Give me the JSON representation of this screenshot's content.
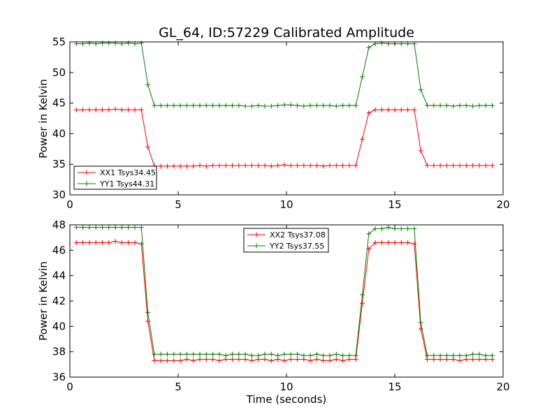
{
  "figure": {
    "title": "GL_64, ID:57229 Calibrated Amplitude"
  },
  "colors": {
    "red": "#ff0000",
    "green": "#008000",
    "axis": "#000000",
    "background": "#ffffff"
  },
  "chart_data": [
    {
      "type": "line",
      "title": "GL_64, ID:57229 Calibrated Amplitude",
      "xlabel": "",
      "ylabel": "Power in Kelvin",
      "xlim": [
        0,
        20
      ],
      "ylim": [
        30,
        55
      ],
      "xticks": [
        0,
        5,
        10,
        15,
        20
      ],
      "yticks": [
        30,
        35,
        40,
        45,
        50,
        55
      ],
      "xtick_labels": [
        "0",
        "5",
        "10",
        "15",
        "20"
      ],
      "ytick_labels": [
        "30",
        "35",
        "40",
        "45",
        "50",
        "55"
      ],
      "grid": false,
      "legend": "lower-left",
      "marker": "+",
      "x": [
        0.3,
        0.6,
        0.9,
        1.2,
        1.5,
        1.8,
        2.1,
        2.4,
        2.7,
        3.0,
        3.3,
        3.6,
        3.9,
        4.2,
        4.5,
        4.8,
        5.1,
        5.4,
        5.7,
        6.0,
        6.3,
        6.6,
        6.9,
        7.2,
        7.5,
        7.8,
        8.1,
        8.4,
        8.7,
        9.0,
        9.3,
        9.6,
        9.9,
        10.2,
        10.5,
        10.8,
        11.1,
        11.4,
        11.7,
        12.0,
        12.3,
        12.6,
        12.9,
        13.2,
        13.5,
        13.8,
        14.1,
        14.4,
        14.7,
        15.0,
        15.3,
        15.6,
        15.9,
        16.2,
        16.5,
        16.8,
        17.1,
        17.4,
        17.7,
        18.0,
        18.3,
        18.6,
        18.9,
        19.2,
        19.5
      ],
      "series": [
        {
          "name": "XX1 Tsys34.45",
          "color": "#ff0000",
          "values": [
            43.9,
            43.9,
            43.9,
            43.9,
            43.9,
            43.9,
            44.0,
            43.9,
            43.9,
            43.9,
            43.9,
            37.8,
            34.7,
            34.7,
            34.7,
            34.7,
            34.7,
            34.7,
            34.7,
            34.8,
            34.7,
            34.8,
            34.8,
            34.8,
            34.8,
            34.8,
            34.8,
            34.8,
            34.8,
            34.8,
            34.7,
            34.8,
            34.9,
            34.8,
            34.8,
            34.8,
            34.8,
            34.8,
            34.7,
            34.8,
            34.8,
            34.8,
            34.8,
            34.8,
            39.1,
            43.4,
            43.9,
            43.9,
            43.9,
            43.9,
            43.9,
            43.9,
            43.9,
            37.2,
            34.8,
            34.8,
            34.8,
            34.8,
            34.8,
            34.8,
            34.8,
            34.8,
            34.8,
            34.8,
            34.8
          ]
        },
        {
          "name": "YY1 Tsys44.31",
          "color": "#008000",
          "values": [
            54.7,
            54.7,
            54.8,
            54.7,
            54.8,
            54.8,
            54.8,
            54.7,
            54.8,
            54.7,
            54.8,
            48.0,
            44.6,
            44.6,
            44.6,
            44.6,
            44.6,
            44.6,
            44.6,
            44.6,
            44.6,
            44.6,
            44.6,
            44.6,
            44.6,
            44.6,
            44.5,
            44.5,
            44.6,
            44.5,
            44.5,
            44.6,
            44.7,
            44.7,
            44.6,
            44.5,
            44.6,
            44.6,
            44.6,
            44.6,
            44.5,
            44.6,
            44.6,
            44.6,
            49.3,
            54.1,
            54.7,
            54.8,
            54.7,
            54.7,
            54.7,
            54.7,
            54.7,
            47.2,
            44.6,
            44.6,
            44.6,
            44.6,
            44.5,
            44.6,
            44.6,
            44.5,
            44.6,
            44.6,
            44.6
          ]
        }
      ]
    },
    {
      "type": "line",
      "title": "",
      "xlabel": "Time (seconds)",
      "ylabel": "Power in Kelvin",
      "xlim": [
        0,
        20
      ],
      "ylim": [
        36,
        48
      ],
      "xticks": [
        0,
        5,
        10,
        15,
        20
      ],
      "yticks": [
        36,
        38,
        40,
        42,
        44,
        46,
        48
      ],
      "xtick_labels": [
        "0",
        "5",
        "10",
        "15",
        "20"
      ],
      "ytick_labels": [
        "36",
        "38",
        "40",
        "42",
        "44",
        "46",
        "48"
      ],
      "grid": false,
      "legend": "top-center",
      "marker": "+",
      "x": [
        0.3,
        0.6,
        0.9,
        1.2,
        1.5,
        1.8,
        2.1,
        2.4,
        2.7,
        3.0,
        3.3,
        3.6,
        3.9,
        4.2,
        4.5,
        4.8,
        5.1,
        5.4,
        5.7,
        6.0,
        6.3,
        6.6,
        6.9,
        7.2,
        7.5,
        7.8,
        8.1,
        8.4,
        8.7,
        9.0,
        9.3,
        9.6,
        9.9,
        10.2,
        10.5,
        10.8,
        11.1,
        11.4,
        11.7,
        12.0,
        12.3,
        12.6,
        12.9,
        13.2,
        13.5,
        13.8,
        14.1,
        14.4,
        14.7,
        15.0,
        15.3,
        15.6,
        15.9,
        16.2,
        16.5,
        16.8,
        17.1,
        17.4,
        17.7,
        18.0,
        18.3,
        18.6,
        18.9,
        19.2,
        19.5
      ],
      "series": [
        {
          "name": "XX2 Tsys37.08",
          "color": "#ff0000",
          "values": [
            46.6,
            46.6,
            46.6,
            46.6,
            46.6,
            46.6,
            46.7,
            46.6,
            46.6,
            46.6,
            46.5,
            40.4,
            37.3,
            37.3,
            37.3,
            37.3,
            37.3,
            37.4,
            37.3,
            37.4,
            37.4,
            37.4,
            37.3,
            37.4,
            37.4,
            37.4,
            37.4,
            37.3,
            37.4,
            37.4,
            37.3,
            37.4,
            37.3,
            37.4,
            37.4,
            37.4,
            37.3,
            37.4,
            37.3,
            37.3,
            37.4,
            37.3,
            37.4,
            37.4,
            41.8,
            46.1,
            46.6,
            46.6,
            46.6,
            46.6,
            46.6,
            46.6,
            46.5,
            39.8,
            37.4,
            37.4,
            37.4,
            37.4,
            37.4,
            37.3,
            37.4,
            37.4,
            37.4,
            37.4,
            37.4
          ]
        },
        {
          "name": "YY2 Tsys37.55",
          "color": "#008000",
          "values": [
            47.8,
            47.8,
            47.8,
            47.8,
            47.8,
            47.8,
            47.8,
            47.8,
            47.8,
            47.8,
            47.8,
            41.1,
            37.8,
            37.8,
            37.8,
            37.8,
            37.8,
            37.8,
            37.8,
            37.8,
            37.8,
            37.8,
            37.8,
            37.7,
            37.8,
            37.8,
            37.8,
            37.7,
            37.7,
            37.8,
            37.8,
            37.7,
            37.8,
            37.8,
            37.8,
            37.7,
            37.7,
            37.8,
            37.7,
            37.7,
            37.8,
            37.7,
            37.7,
            37.7,
            42.5,
            47.3,
            47.7,
            47.7,
            47.8,
            47.7,
            47.7,
            47.7,
            47.7,
            40.3,
            37.7,
            37.7,
            37.7,
            37.7,
            37.7,
            37.7,
            37.7,
            37.8,
            37.8,
            37.7,
            37.7
          ]
        }
      ]
    }
  ]
}
